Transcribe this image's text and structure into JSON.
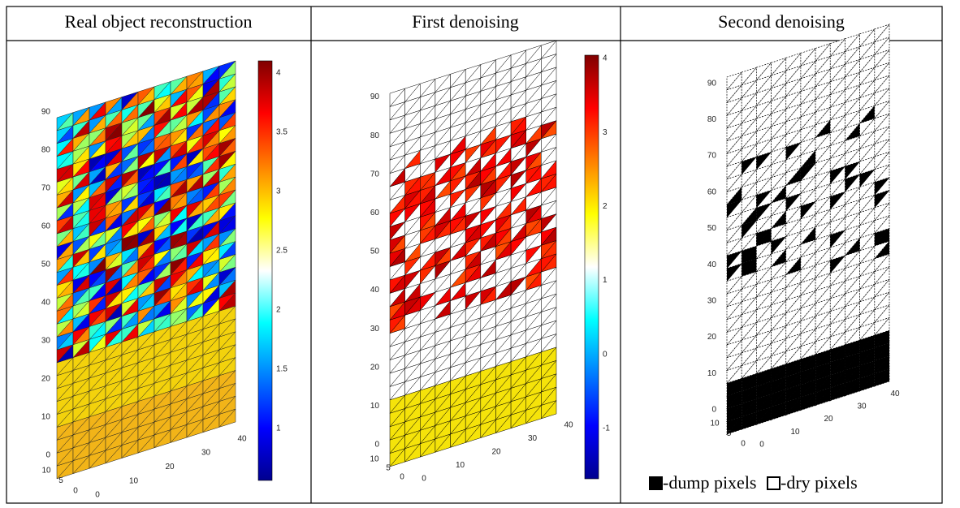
{
  "panels": [
    {
      "title": "Real object reconstruction",
      "z_ticks": [
        0,
        10,
        20,
        30,
        40,
        50,
        60,
        70,
        80,
        90
      ],
      "x_ticks": [
        0,
        10,
        20,
        30,
        40
      ],
      "depth_ticks": [
        0,
        5,
        10
      ],
      "colorbar_ticks": [
        1,
        1.5,
        2,
        2.5,
        3,
        3.5,
        4
      ]
    },
    {
      "title": "First denoising",
      "z_ticks": [
        0,
        10,
        20,
        30,
        40,
        50,
        60,
        70,
        80,
        90
      ],
      "x_ticks": [
        0,
        10,
        20,
        30,
        40
      ],
      "depth_ticks": [
        0,
        5,
        10
      ],
      "colorbar_ticks": [
        -1,
        0,
        1,
        2,
        3,
        4
      ]
    },
    {
      "title": "Second denoising",
      "z_ticks": [
        0,
        10,
        20,
        30,
        40,
        50,
        60,
        70,
        80,
        90
      ],
      "x_ticks": [
        0,
        10,
        20,
        30,
        40
      ],
      "depth_ticks": [
        0,
        5,
        10
      ],
      "legend": [
        "-dump pixels",
        "-dry pixels"
      ]
    }
  ]
}
